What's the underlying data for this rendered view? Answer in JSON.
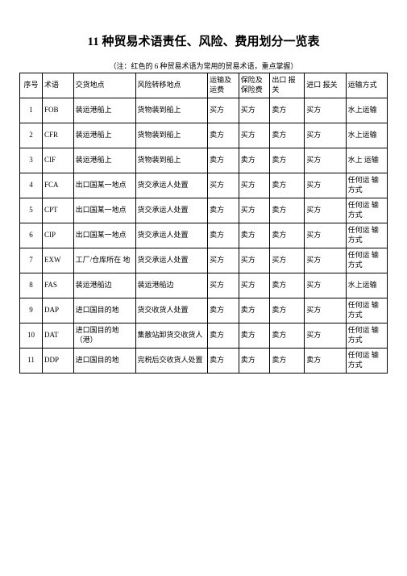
{
  "title": "11 种贸易术语责任、风险、费用划分一览表",
  "note": "（注：红色的 6 种贸易术语为常用的贸易术语，重点掌握）",
  "columns": [
    "序号",
    "术语",
    "交货地点",
    "风险转移地点",
    "运输及运费",
    "保险及保险费",
    "出口 报关",
    "进口 报关",
    "运输方式"
  ],
  "rows": [
    {
      "seq": "1",
      "term": "FOB",
      "place": "装运港船上",
      "risk": "货物装到船上",
      "freight": "买方",
      "ins": "买方",
      "exp": "卖方",
      "imp": "买方",
      "trans": "水上运输"
    },
    {
      "seq": "2",
      "term": "CFR",
      "place": "装运港船上",
      "risk": "货物装到船上",
      "freight": "卖方",
      "ins": "买方",
      "exp": "卖方",
      "imp": "买方",
      "trans": "水上运输"
    },
    {
      "seq": "3",
      "term": "CIF",
      "place": "装运港船上",
      "risk": "货物装到船上",
      "freight": "卖方",
      "ins": "卖方",
      "exp": "卖方",
      "imp": "买方",
      "trans": "水上 运输"
    },
    {
      "seq": "4",
      "term": "FCA",
      "place": "出口国某一地点",
      "risk": "货交承运人处置",
      "freight": "买方",
      "ins": "买方",
      "exp": "卖方",
      "imp": "买方",
      "trans": "任何运 输方式"
    },
    {
      "seq": "5",
      "term": "CPT",
      "place": "出口国某一地点",
      "risk": "货交承运人处置",
      "freight": "卖方",
      "ins": "买方",
      "exp": "卖方",
      "imp": "买方",
      "trans": "任何运 输方式"
    },
    {
      "seq": "6",
      "term": "CIP",
      "place": "出口国某一地点",
      "risk": "货交承运人处置",
      "freight": "卖方",
      "ins": "卖方",
      "exp": "卖方",
      "imp": "买方",
      "trans": "任何运 输方式"
    },
    {
      "seq": "7",
      "term": "EXW",
      "place": "工厂/仓库所在  地",
      "risk": "货交承运人处置",
      "freight": "买方",
      "ins": "买方",
      "exp": "买方",
      "imp": "买方",
      "trans": "任何运 输方式"
    },
    {
      "seq": "8",
      "term": "FAS",
      "place": "装运港船边",
      "risk": "装运港船边",
      "freight": "买方",
      "ins": "买方",
      "exp": "卖方",
      "imp": "买方",
      "trans": "水上运输"
    },
    {
      "seq": "9",
      "term": "DAP",
      "place": "进口国目的地",
      "risk": "货交收货人处置",
      "freight": "卖方",
      "ins": "卖方",
      "exp": "卖方",
      "imp": "买方",
      "trans": "任何运 输方式"
    },
    {
      "seq": "10",
      "term": "DAT",
      "place": "进口国目的地（港）",
      "risk": "集散站卸货交收货人",
      "freight": "卖方",
      "ins": "卖方",
      "exp": "卖方",
      "imp": "买方",
      "trans": "任何运 输方式"
    },
    {
      "seq": "11",
      "term": "DDP",
      "place": "进口国目的地",
      "risk": "完税后交收货人处置",
      "freight": "卖方",
      "ins": "卖方",
      "exp": "卖方",
      "imp": "卖方",
      "trans": "任何运 输方式"
    }
  ]
}
